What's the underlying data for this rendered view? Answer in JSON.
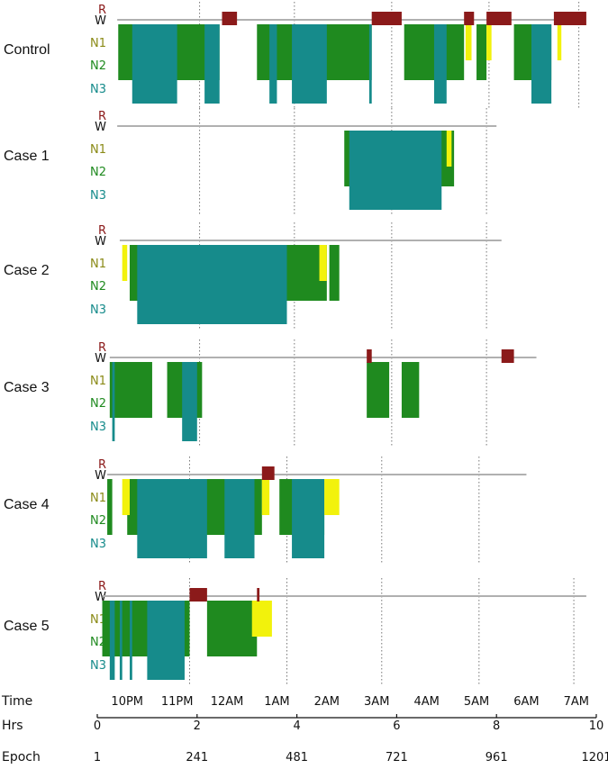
{
  "chart_data": {
    "type": "hypnogram",
    "stages": [
      "R",
      "W",
      "N1",
      "N2",
      "N3"
    ],
    "colors": {
      "R": "#8b1a1a",
      "W": "#b0b0b0",
      "N1": "#f2f20c",
      "N2": "#1f8a1f",
      "N3": "#168b8b"
    },
    "stage_label_colors": {
      "R": "#8b1a1a",
      "W": "#111111",
      "N1": "#8a8a16",
      "N2": "#1f8a1f",
      "N3": "#168b8b"
    },
    "x_unit": "hours",
    "hrs_range": [
      0,
      10
    ],
    "axis_rows": {
      "time": {
        "label": "Time",
        "ticks": [
          {
            "hrs": 0.6,
            "text": "10PM"
          },
          {
            "hrs": 1.6,
            "text": "11PM"
          },
          {
            "hrs": 2.6,
            "text": "12AM"
          },
          {
            "hrs": 3.6,
            "text": "1AM"
          },
          {
            "hrs": 4.6,
            "text": "2AM"
          },
          {
            "hrs": 5.6,
            "text": "3AM"
          },
          {
            "hrs": 6.6,
            "text": "4AM"
          },
          {
            "hrs": 7.6,
            "text": "5AM"
          },
          {
            "hrs": 8.6,
            "text": "6AM"
          },
          {
            "hrs": 9.6,
            "text": "7AM"
          }
        ]
      },
      "hrs": {
        "label": "Hrs",
        "ticks": [
          {
            "hrs": 0,
            "text": "0"
          },
          {
            "hrs": 2,
            "text": "2"
          },
          {
            "hrs": 4,
            "text": "4"
          },
          {
            "hrs": 6,
            "text": "6"
          },
          {
            "hrs": 8,
            "text": "8"
          },
          {
            "hrs": 10,
            "text": "10"
          }
        ]
      },
      "epoch": {
        "label": "Epoch",
        "ticks": [
          {
            "hrs": 0,
            "text": "1"
          },
          {
            "hrs": 2,
            "text": "241"
          },
          {
            "hrs": 4,
            "text": "481"
          },
          {
            "hrs": 6,
            "text": "721"
          },
          {
            "hrs": 8,
            "text": "961"
          },
          {
            "hrs": 10,
            "text": "1201"
          }
        ]
      }
    },
    "panels": [
      {
        "name": "Control",
        "clock_lines": [
          2.05,
          3.95,
          5.9,
          7.85,
          9.65
        ],
        "record": [
          0.4,
          9.75
        ],
        "segments": [
          {
            "stage": "N2",
            "start": 0.42,
            "end": 2.45
          },
          {
            "stage": "N3",
            "start": 0.7,
            "end": 1.6
          },
          {
            "stage": "N3",
            "start": 2.15,
            "end": 2.45
          },
          {
            "stage": "R",
            "start": 2.5,
            "end": 2.8
          },
          {
            "stage": "N2",
            "start": 3.2,
            "end": 5.5
          },
          {
            "stage": "N3",
            "start": 3.45,
            "end": 3.6
          },
          {
            "stage": "N3",
            "start": 3.9,
            "end": 4.6
          },
          {
            "stage": "N3",
            "start": 5.45,
            "end": 5.5
          },
          {
            "stage": "R",
            "start": 5.5,
            "end": 6.1
          },
          {
            "stage": "N2",
            "start": 6.15,
            "end": 7.35
          },
          {
            "stage": "N3",
            "start": 6.75,
            "end": 7.0
          },
          {
            "stage": "R",
            "start": 7.35,
            "end": 7.55
          },
          {
            "stage": "N1",
            "start": 7.38,
            "end": 7.5
          },
          {
            "stage": "N2",
            "start": 7.6,
            "end": 7.8
          },
          {
            "stage": "R",
            "start": 7.8,
            "end": 8.3
          },
          {
            "stage": "N1",
            "start": 7.8,
            "end": 7.9
          },
          {
            "stage": "N2",
            "start": 8.35,
            "end": 9.1
          },
          {
            "stage": "N3",
            "start": 8.7,
            "end": 9.1
          },
          {
            "stage": "R",
            "start": 9.15,
            "end": 9.8
          },
          {
            "stage": "N1",
            "start": 9.22,
            "end": 9.3
          }
        ]
      },
      {
        "name": "Case 1",
        "clock_lines": [
          2.05,
          3.95,
          5.9,
          7.8
        ],
        "record": [
          0.4,
          8.0
        ],
        "segments": [
          {
            "stage": "N2",
            "start": 4.95,
            "end": 7.15
          },
          {
            "stage": "N3",
            "start": 5.05,
            "end": 6.9
          },
          {
            "stage": "N1",
            "start": 7.0,
            "end": 7.1
          }
        ]
      },
      {
        "name": "Case 2",
        "clock_lines": [
          2.05,
          3.95,
          5.9,
          7.8
        ],
        "record": [
          0.45,
          8.1
        ],
        "segments": [
          {
            "stage": "N1",
            "start": 0.5,
            "end": 0.6
          },
          {
            "stage": "N2",
            "start": 0.65,
            "end": 4.6
          },
          {
            "stage": "N3",
            "start": 0.8,
            "end": 3.8
          },
          {
            "stage": "N1",
            "start": 4.45,
            "end": 4.6
          },
          {
            "stage": "N2",
            "start": 4.65,
            "end": 4.85
          }
        ]
      },
      {
        "name": "Case 3",
        "clock_lines": [
          2.05,
          3.95,
          5.9,
          7.8
        ],
        "record": [
          0.25,
          8.8
        ],
        "segments": [
          {
            "stage": "N2",
            "start": 0.25,
            "end": 1.1
          },
          {
            "stage": "N3",
            "start": 0.3,
            "end": 0.35
          },
          {
            "stage": "N2",
            "start": 1.4,
            "end": 2.1
          },
          {
            "stage": "N3",
            "start": 1.7,
            "end": 2.0
          },
          {
            "stage": "R",
            "start": 5.4,
            "end": 5.5
          },
          {
            "stage": "N2",
            "start": 5.4,
            "end": 5.85
          },
          {
            "stage": "N2",
            "start": 6.1,
            "end": 6.45
          },
          {
            "stage": "R",
            "start": 8.1,
            "end": 8.35
          }
        ]
      },
      {
        "name": "Case 4",
        "clock_lines": [
          1.85,
          3.8,
          5.7,
          7.65
        ],
        "record": [
          0.2,
          8.6
        ],
        "segments": [
          {
            "stage": "N2",
            "start": 0.2,
            "end": 0.3
          },
          {
            "stage": "N1",
            "start": 0.5,
            "end": 0.65
          },
          {
            "stage": "N2",
            "start": 0.6,
            "end": 3.3
          },
          {
            "stage": "N3",
            "start": 0.8,
            "end": 2.2
          },
          {
            "stage": "N3",
            "start": 2.55,
            "end": 3.15
          },
          {
            "stage": "R",
            "start": 3.3,
            "end": 3.55
          },
          {
            "stage": "N1",
            "start": 3.3,
            "end": 3.45
          },
          {
            "stage": "N2",
            "start": 3.65,
            "end": 4.55
          },
          {
            "stage": "N3",
            "start": 3.9,
            "end": 4.55
          },
          {
            "stage": "N1",
            "start": 4.55,
            "end": 4.85
          }
        ]
      },
      {
        "name": "Case 5",
        "clock_lines": [
          1.85,
          3.8,
          5.7,
          7.65,
          9.55
        ],
        "record": [
          0.1,
          9.8
        ],
        "segments": [
          {
            "stage": "N2",
            "start": 0.1,
            "end": 1.85
          },
          {
            "stage": "N3",
            "start": 0.25,
            "end": 0.35
          },
          {
            "stage": "N3",
            "start": 0.45,
            "end": 0.5
          },
          {
            "stage": "N3",
            "start": 0.65,
            "end": 0.7
          },
          {
            "stage": "N3",
            "start": 1.0,
            "end": 1.75
          },
          {
            "stage": "R",
            "start": 1.85,
            "end": 2.2
          },
          {
            "stage": "N2",
            "start": 2.2,
            "end": 3.2
          },
          {
            "stage": "N1",
            "start": 3.1,
            "end": 3.5
          },
          {
            "stage": "R",
            "start": 3.2,
            "end": 3.25
          }
        ]
      }
    ]
  }
}
